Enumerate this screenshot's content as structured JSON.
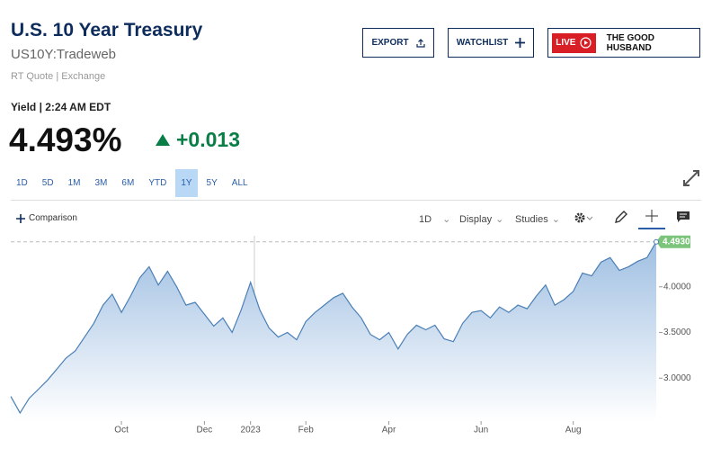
{
  "header": {
    "title": "U.S. 10 Year Treasury",
    "symbol": "US10Y:Tradeweb",
    "source": "RT Quote | Exchange"
  },
  "quote": {
    "yield_label": "Yield | 2:24 AM EDT",
    "price": "4.493%",
    "change": "+0.013"
  },
  "buttons": {
    "export": "EXPORT",
    "watchlist": "WATCHLIST",
    "live": "LIVE",
    "show": "THE GOOD HUSBAND"
  },
  "ranges": [
    "1D",
    "5D",
    "1M",
    "3M",
    "6M",
    "YTD",
    "1Y",
    "5Y",
    "ALL"
  ],
  "active_range": "1Y",
  "toolbar": {
    "comparison": "Comparison",
    "interval": "1D",
    "display": "Display",
    "studies": "Studies"
  },
  "chart_data": {
    "type": "area",
    "categories": [
      null,
      null,
      null,
      null,
      null,
      null,
      null,
      null,
      null,
      null,
      null,
      null,
      "Oct",
      null,
      null,
      null,
      null,
      null,
      null,
      null,
      null,
      "Dec",
      null,
      null,
      null,
      null,
      "2023",
      null,
      null,
      null,
      null,
      null,
      "Feb",
      null,
      null,
      null,
      null,
      null,
      null,
      null,
      null,
      "Apr",
      null,
      null,
      null,
      null,
      null,
      null,
      null,
      null,
      null,
      "Jun",
      null,
      null,
      null,
      null,
      null,
      null,
      null,
      null,
      null,
      "Aug",
      null,
      null,
      null,
      null,
      null,
      null,
      null,
      null,
      null
    ],
    "values": [
      2.8,
      2.62,
      2.78,
      2.88,
      2.98,
      3.1,
      3.22,
      3.3,
      3.45,
      3.6,
      3.8,
      3.92,
      3.72,
      3.9,
      4.1,
      4.22,
      4.02,
      4.17,
      4.0,
      3.8,
      3.83,
      3.7,
      3.57,
      3.66,
      3.5,
      3.75,
      4.05,
      3.75,
      3.55,
      3.45,
      3.5,
      3.42,
      3.62,
      3.72,
      3.8,
      3.88,
      3.93,
      3.78,
      3.66,
      3.48,
      3.42,
      3.5,
      3.32,
      3.48,
      3.58,
      3.53,
      3.58,
      3.43,
      3.4,
      3.6,
      3.72,
      3.74,
      3.66,
      3.78,
      3.72,
      3.8,
      3.76,
      3.9,
      4.02,
      3.8,
      3.86,
      3.95,
      4.15,
      4.12,
      4.27,
      4.32,
      4.18,
      4.22,
      4.28,
      4.32,
      4.493
    ],
    "value_labels": [
      null,
      null,
      null,
      null,
      null,
      null,
      null,
      null,
      null,
      null,
      null,
      null,
      null,
      null,
      null,
      null,
      null,
      null,
      null,
      null,
      null,
      null,
      null,
      null,
      null,
      null,
      null,
      null,
      null,
      null,
      null,
      null,
      null,
      null,
      null,
      null,
      null,
      null,
      null,
      null,
      null,
      null,
      null,
      null,
      null,
      null,
      null,
      null,
      null,
      null,
      null,
      null,
      null,
      null,
      null,
      null,
      null,
      null,
      null,
      null,
      null,
      null,
      null,
      null,
      null,
      null,
      null,
      null,
      null,
      null,
      "4.4930"
    ],
    "color": "#4a7fb5",
    "ylim": [
      2.53,
      4.5
    ],
    "yticks": [
      {
        "value": 3,
        "label": "3.0000"
      },
      {
        "value": 3.5,
        "label": "3.5000"
      },
      {
        "value": 4,
        "label": "4.0000"
      }
    ]
  }
}
